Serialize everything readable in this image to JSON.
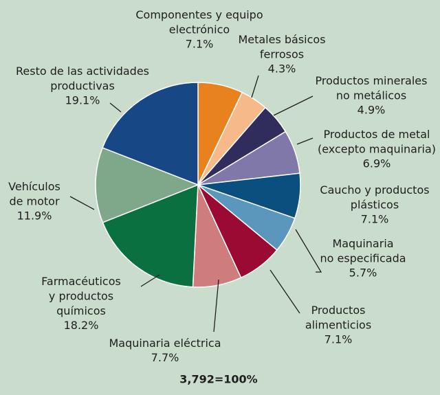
{
  "chart_data": {
    "type": "pie",
    "categories": [
      "Componentes y equipo\nelectrónico",
      "Metales básicos\nferrosos",
      "Productos minerales\nno metálicos",
      "Productos de metal\n(excepto maquinaria)",
      "Caucho y productos\nplásticos",
      "Maquinaria\nno especificada",
      "Productos\nalimenticios",
      "Maquinaria eléctrica",
      "Farmacéuticos\ny productos\nquímicos",
      "Vehículos\nde motor",
      "Resto de las actividades\nproductivas"
    ],
    "values": [
      7.1,
      4.3,
      4.9,
      6.9,
      7.1,
      5.7,
      7.1,
      7.7,
      18.2,
      11.9,
      19.1
    ],
    "value_labels": [
      "7.1%",
      "4.3%",
      "4.9%",
      "6.9%",
      "7.1%",
      "5.7%",
      "7.1%",
      "7.7%",
      "18.2%",
      "11.9%",
      "19.1%"
    ],
    "colors": [
      "#e8821e",
      "#f5b98a",
      "#302c5c",
      "#8078a8",
      "#0a4f7e",
      "#5b96bd",
      "#9b0a32",
      "#cf7c7c",
      "#0b7040",
      "#7fa88a",
      "#174785"
    ],
    "note": "3,792=100%"
  }
}
